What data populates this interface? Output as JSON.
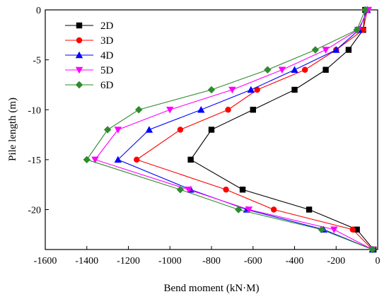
{
  "chart_data": {
    "type": "line",
    "title": "",
    "xlabel": "Bend moment (kN·M)",
    "ylabel": "Pile length (m)",
    "xlim": [
      -1600,
      0
    ],
    "ylim": [
      -24,
      0
    ],
    "x_ticks": [
      -1600,
      -1400,
      -1200,
      -1000,
      -800,
      -600,
      -400,
      -200,
      0
    ],
    "y_ticks": [
      0,
      -5,
      -10,
      -15,
      -20
    ],
    "x_tick_labels": [
      "-1600",
      "-1400",
      "-1200",
      "-1000",
      "-800",
      "-600",
      "-400",
      "-200",
      "0"
    ],
    "y_tick_labels": [
      "0",
      "-5",
      "-10",
      "-15",
      "-20"
    ],
    "legend_position": "top-left",
    "grid": false,
    "series": [
      {
        "name": "2D",
        "color": "#000000",
        "marker": "square",
        "points": [
          [
            -60,
            0
          ],
          [
            -70,
            -2
          ],
          [
            -140,
            -4
          ],
          [
            -250,
            -6
          ],
          [
            -400,
            -8
          ],
          [
            -600,
            -10
          ],
          [
            -800,
            -12
          ],
          [
            -900,
            -15
          ],
          [
            -650,
            -18
          ],
          [
            -330,
            -20
          ],
          [
            -100,
            -22
          ],
          [
            -20,
            -24
          ]
        ]
      },
      {
        "name": "3D",
        "color": "#ff0000",
        "marker": "circle",
        "points": [
          [
            -50,
            0
          ],
          [
            -70,
            -2
          ],
          [
            -200,
            -4
          ],
          [
            -350,
            -6
          ],
          [
            -580,
            -8
          ],
          [
            -720,
            -10
          ],
          [
            -950,
            -12
          ],
          [
            -1160,
            -15
          ],
          [
            -730,
            -18
          ],
          [
            -500,
            -20
          ],
          [
            -120,
            -22
          ],
          [
            -25,
            -24
          ]
        ]
      },
      {
        "name": "4D",
        "color": "#0000ff",
        "marker": "triangle-up",
        "points": [
          [
            -50,
            0
          ],
          [
            -90,
            -2
          ],
          [
            -200,
            -4
          ],
          [
            -400,
            -6
          ],
          [
            -610,
            -8
          ],
          [
            -850,
            -10
          ],
          [
            -1100,
            -12
          ],
          [
            -1250,
            -15
          ],
          [
            -900,
            -18
          ],
          [
            -630,
            -20
          ],
          [
            -260,
            -22
          ],
          [
            -25,
            -24
          ]
        ]
      },
      {
        "name": "5D",
        "color": "#ff00ff",
        "marker": "triangle-down",
        "points": [
          [
            -45,
            0
          ],
          [
            -95,
            -2
          ],
          [
            -250,
            -4
          ],
          [
            -460,
            -6
          ],
          [
            -700,
            -8
          ],
          [
            -1000,
            -10
          ],
          [
            -1250,
            -12
          ],
          [
            -1360,
            -15
          ],
          [
            -910,
            -18
          ],
          [
            -620,
            -20
          ],
          [
            -210,
            -22
          ],
          [
            -25,
            -24
          ]
        ]
      },
      {
        "name": "6D",
        "color": "#2e8b2e",
        "marker": "diamond",
        "points": [
          [
            -60,
            0
          ],
          [
            -100,
            -2
          ],
          [
            -300,
            -4
          ],
          [
            -530,
            -6
          ],
          [
            -800,
            -8
          ],
          [
            -1150,
            -10
          ],
          [
            -1300,
            -12
          ],
          [
            -1400,
            -15
          ],
          [
            -950,
            -18
          ],
          [
            -670,
            -20
          ],
          [
            -270,
            -22
          ],
          [
            -25,
            -24
          ]
        ]
      }
    ]
  }
}
